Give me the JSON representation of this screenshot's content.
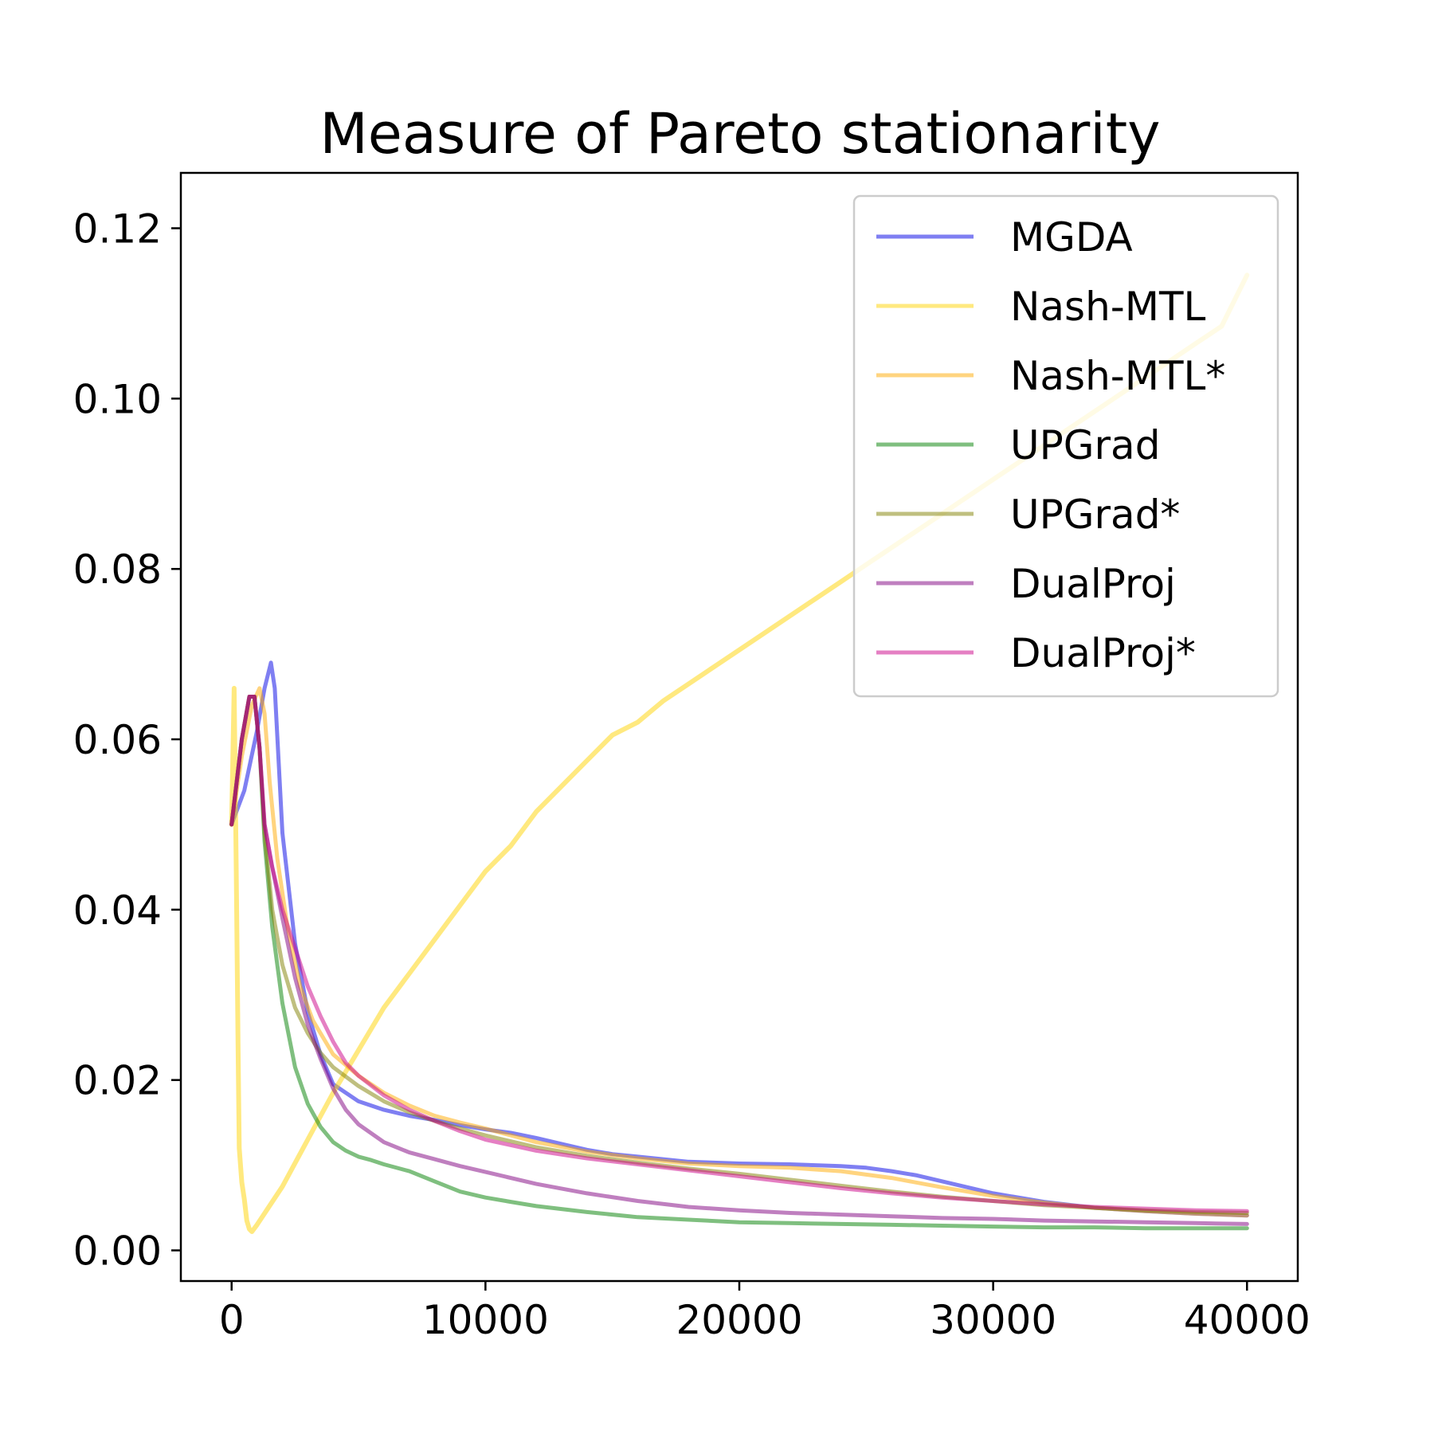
{
  "chart_data": {
    "type": "line",
    "title": "Measure of Pareto stationarity",
    "xlabel": "",
    "ylabel": "",
    "xlim": [
      -2000,
      42000
    ],
    "ylim": [
      -0.0036,
      0.1265
    ],
    "xticks": [
      0,
      10000,
      20000,
      30000,
      40000
    ],
    "xtick_labels": [
      "0",
      "10000",
      "20000",
      "30000",
      "40000"
    ],
    "yticks": [
      0.0,
      0.02,
      0.04,
      0.06,
      0.08,
      0.1,
      0.12
    ],
    "ytick_labels": [
      "0.00",
      "0.02",
      "0.04",
      "0.06",
      "0.08",
      "0.10",
      "0.12"
    ],
    "grid": false,
    "legend_position": "upper right",
    "series": [
      {
        "name": "MGDA",
        "color": "#0000e6",
        "x": [
          0,
          500,
          1000,
          1300,
          1550,
          1700,
          2000,
          2500,
          3000,
          3500,
          4000,
          5000,
          6000,
          7000,
          8000,
          9000,
          10000,
          11000,
          12000,
          13000,
          14000,
          15000,
          16000,
          17000,
          18000,
          20000,
          22000,
          24000,
          25000,
          26000,
          27000,
          28000,
          29000,
          30000,
          32000,
          34000,
          36000,
          38000,
          40000
        ],
        "y": [
          0.05,
          0.054,
          0.061,
          0.066,
          0.069,
          0.066,
          0.049,
          0.036,
          0.028,
          0.023,
          0.0195,
          0.0175,
          0.0165,
          0.0158,
          0.0153,
          0.0147,
          0.0142,
          0.0138,
          0.0132,
          0.0125,
          0.0118,
          0.0113,
          0.011,
          0.0107,
          0.0104,
          0.0102,
          0.0101,
          0.0099,
          0.0097,
          0.0093,
          0.0088,
          0.0081,
          0.0074,
          0.0067,
          0.0057,
          0.005,
          0.0046,
          0.0043,
          0.0041
        ]
      },
      {
        "name": "Nash-MTL",
        "color": "#ffd400",
        "x": [
          0,
          100,
          180,
          250,
          300,
          400,
          500,
          600,
          700,
          800,
          1000,
          2000,
          3000,
          4000,
          5000,
          6000,
          7000,
          8000,
          9000,
          10000,
          11000,
          12000,
          13000,
          14000,
          15000,
          16000,
          17000,
          18000,
          19000,
          20000,
          21000,
          22000,
          23000,
          24000,
          25000,
          26000,
          27000,
          28000,
          29000,
          30000,
          31000,
          32000,
          33000,
          34000,
          35000,
          36000,
          37000,
          38000,
          39000,
          40000
        ],
        "y": [
          0.05,
          0.066,
          0.045,
          0.025,
          0.012,
          0.008,
          0.006,
          0.0035,
          0.0025,
          0.0022,
          0.003,
          0.0075,
          0.013,
          0.0185,
          0.0235,
          0.0285,
          0.0325,
          0.0365,
          0.0405,
          0.0445,
          0.0475,
          0.0515,
          0.0545,
          0.0575,
          0.0605,
          0.062,
          0.0645,
          0.0665,
          0.0685,
          0.0705,
          0.0725,
          0.0745,
          0.0765,
          0.0785,
          0.0805,
          0.0825,
          0.0845,
          0.0865,
          0.0885,
          0.0905,
          0.0925,
          0.0945,
          0.0965,
          0.0985,
          0.1005,
          0.1025,
          0.1045,
          0.1065,
          0.1085,
          0.1145
        ]
      },
      {
        "name": "Nash-MTL*",
        "color": "#ffaa00",
        "x": [
          0,
          400,
          800,
          1100,
          1300,
          1500,
          1800,
          2200,
          2700,
          3200,
          4000,
          5000,
          6000,
          7000,
          8000,
          9000,
          10000,
          12000,
          14000,
          16000,
          18000,
          20000,
          22000,
          24000,
          26000,
          28000,
          30000,
          32000,
          34000,
          36000,
          38000,
          40000
        ],
        "y": [
          0.05,
          0.058,
          0.064,
          0.066,
          0.063,
          0.055,
          0.046,
          0.038,
          0.031,
          0.027,
          0.023,
          0.0205,
          0.0185,
          0.017,
          0.0158,
          0.015,
          0.0143,
          0.0127,
          0.0116,
          0.0108,
          0.0102,
          0.0099,
          0.0097,
          0.0093,
          0.0085,
          0.0074,
          0.0064,
          0.0056,
          0.005,
          0.0046,
          0.0043,
          0.0041
        ]
      },
      {
        "name": "UPGrad",
        "color": "#008000",
        "x": [
          0,
          400,
          700,
          900,
          1100,
          1300,
          1600,
          2000,
          2500,
          3000,
          3500,
          4000,
          4500,
          5000,
          5500,
          6000,
          7000,
          8000,
          9000,
          10000,
          11000,
          12000,
          14000,
          16000,
          18000,
          20000,
          22000,
          24000,
          26000,
          28000,
          30000,
          32000,
          34000,
          36000,
          38000,
          40000
        ],
        "y": [
          0.05,
          0.06,
          0.065,
          0.065,
          0.059,
          0.048,
          0.038,
          0.029,
          0.0215,
          0.0172,
          0.0145,
          0.0127,
          0.0117,
          0.011,
          0.0106,
          0.0101,
          0.0093,
          0.0081,
          0.0069,
          0.0062,
          0.0057,
          0.0052,
          0.0045,
          0.0039,
          0.0036,
          0.0033,
          0.0032,
          0.0031,
          0.003,
          0.0029,
          0.0028,
          0.0027,
          0.0027,
          0.0026,
          0.0026,
          0.0026
        ]
      },
      {
        "name": "UPGrad*",
        "color": "#808000",
        "x": [
          0,
          400,
          700,
          900,
          1100,
          1300,
          1600,
          2000,
          2500,
          3000,
          3500,
          4000,
          5000,
          6000,
          7000,
          8000,
          9000,
          10000,
          12000,
          14000,
          16000,
          18000,
          20000,
          22000,
          24000,
          26000,
          28000,
          30000,
          32000,
          34000,
          36000,
          38000,
          40000
        ],
        "y": [
          0.05,
          0.06,
          0.065,
          0.065,
          0.059,
          0.049,
          0.04,
          0.0335,
          0.0285,
          0.0255,
          0.0232,
          0.0215,
          0.0193,
          0.0175,
          0.0162,
          0.0152,
          0.0143,
          0.0135,
          0.0121,
          0.0111,
          0.0103,
          0.0096,
          0.009,
          0.0083,
          0.0076,
          0.0069,
          0.0063,
          0.0058,
          0.0053,
          0.005,
          0.0047,
          0.0045,
          0.0044
        ]
      },
      {
        "name": "DualProj",
        "color": "#800080",
        "x": [
          0,
          400,
          700,
          900,
          1100,
          1300,
          1600,
          2000,
          2500,
          3000,
          3500,
          4000,
          4500,
          5000,
          6000,
          7000,
          8000,
          9000,
          10000,
          12000,
          14000,
          16000,
          18000,
          20000,
          22000,
          24000,
          26000,
          28000,
          30000,
          32000,
          34000,
          36000,
          38000,
          40000
        ],
        "y": [
          0.05,
          0.06,
          0.065,
          0.065,
          0.059,
          0.05,
          0.045,
          0.039,
          0.032,
          0.0265,
          0.0225,
          0.019,
          0.0165,
          0.0148,
          0.0127,
          0.0115,
          0.0107,
          0.0099,
          0.0092,
          0.0078,
          0.0067,
          0.0058,
          0.0051,
          0.0047,
          0.0044,
          0.0042,
          0.004,
          0.0038,
          0.0037,
          0.0035,
          0.0034,
          0.0033,
          0.0032,
          0.0031
        ]
      },
      {
        "name": "DualProj*",
        "color": "#cc0088",
        "x": [
          0,
          400,
          700,
          900,
          1100,
          1300,
          1600,
          2000,
          2500,
          3000,
          3500,
          4000,
          4500,
          5000,
          6000,
          7000,
          8000,
          9000,
          10000,
          12000,
          14000,
          16000,
          18000,
          20000,
          22000,
          24000,
          26000,
          28000,
          30000,
          32000,
          34000,
          36000,
          38000,
          40000
        ],
        "y": [
          0.05,
          0.06,
          0.065,
          0.065,
          0.059,
          0.05,
          0.045,
          0.04,
          0.0355,
          0.031,
          0.0275,
          0.0245,
          0.022,
          0.0205,
          0.0182,
          0.0165,
          0.0152,
          0.014,
          0.013,
          0.0117,
          0.0108,
          0.0101,
          0.0094,
          0.0087,
          0.008,
          0.0073,
          0.0067,
          0.0062,
          0.0058,
          0.0054,
          0.0051,
          0.0049,
          0.0047,
          0.0046
        ]
      }
    ]
  }
}
